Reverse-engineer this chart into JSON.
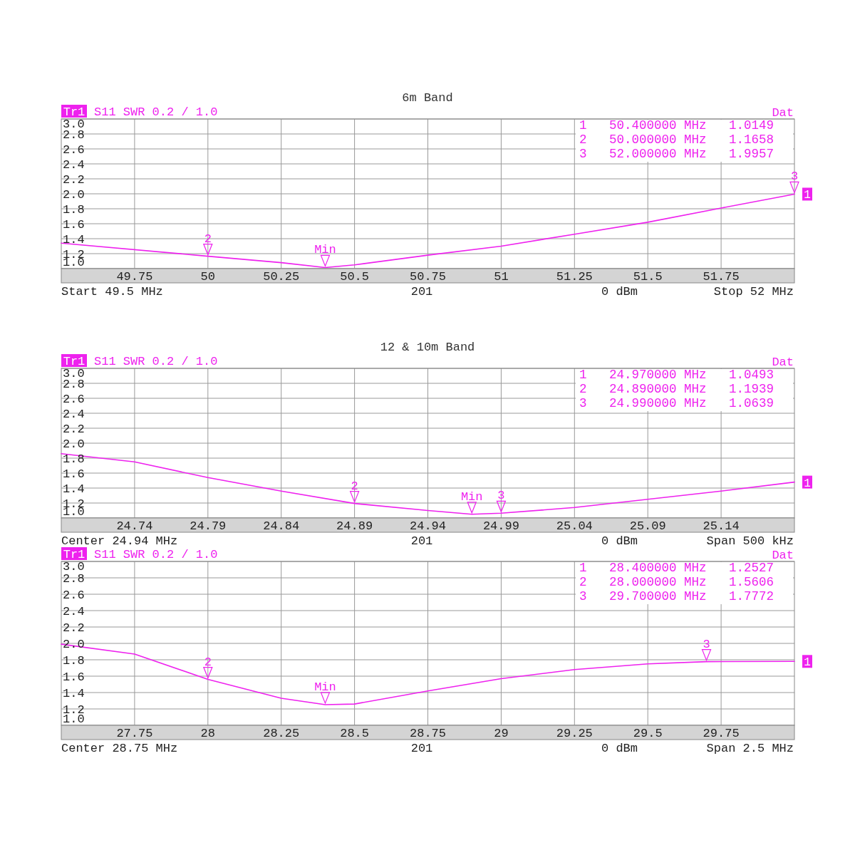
{
  "chart_data": [
    {
      "type": "line",
      "title": "6m Band",
      "color": "#ee22ee",
      "grid": true,
      "x": [
        49.5,
        50.0,
        50.25,
        50.4,
        50.5,
        50.75,
        51.0,
        51.25,
        51.5,
        51.75,
        52.0
      ],
      "values": [
        1.34,
        1.1658,
        1.08,
        1.0149,
        1.05,
        1.18,
        1.3,
        1.46,
        1.62,
        1.81,
        1.9957
      ],
      "xlim": [
        49.5,
        52
      ],
      "xticks": [
        49.75,
        50,
        50.25,
        50.5,
        50.75,
        51,
        51.25,
        51.5,
        51.75
      ],
      "ylim": [
        1,
        3
      ],
      "yticks": [
        {
          "value": 1,
          "label": "1.0"
        },
        {
          "value": 1.2,
          "label": "1.2"
        },
        {
          "value": 1.4,
          "label": "1.4"
        },
        {
          "value": 1.6,
          "label": "1.6"
        },
        {
          "value": 1.8,
          "label": "1.8"
        },
        {
          "value": 2,
          "label": "2.0"
        },
        {
          "value": 2.2,
          "label": "2.2"
        },
        {
          "value": 2.4,
          "label": "2.4"
        },
        {
          "value": 2.6,
          "label": "2.6"
        },
        {
          "value": 2.8,
          "label": "2.8"
        },
        {
          "value": 3,
          "label": "3.0"
        }
      ],
      "annotations": [
        "Tr1",
        "S11 SWR 0.2 / 1.0",
        "Dat",
        "1   50.400000 MHz   1.0149",
        "2   50.000000 MHz   1.1658",
        "3   52.000000 MHz   1.9957",
        "Start 49.5 MHz",
        "201",
        "0 dBm",
        "Stop 52 MHz",
        "1",
        {
          "text": "2",
          "x": 50,
          "y": 1.1658
        },
        {
          "text": "Min",
          "x": 50.4,
          "y": 1.0149
        },
        {
          "text": "3",
          "x": 52,
          "y": 1.9957
        }
      ]
    },
    {
      "type": "line",
      "title": "12 & 10m Band",
      "color": "#ee22ee",
      "grid": true,
      "x": [
        24.69,
        24.74,
        24.79,
        24.84,
        24.89,
        24.94,
        24.97,
        24.99,
        25.04,
        25.09,
        25.14,
        25.19
      ],
      "values": [
        1.86,
        1.75,
        1.54,
        1.36,
        1.1939,
        1.1,
        1.0493,
        1.0639,
        1.14,
        1.25,
        1.36,
        1.48
      ],
      "xlim": [
        24.69,
        25.19
      ],
      "xticks": [
        24.74,
        24.79,
        24.84,
        24.89,
        24.94,
        24.99,
        25.04,
        25.09,
        25.14
      ],
      "ylim": [
        1,
        3
      ],
      "yticks": [
        {
          "value": 1,
          "label": "1.0"
        },
        {
          "value": 1.2,
          "label": "1.2"
        },
        {
          "value": 1.4,
          "label": "1.4"
        },
        {
          "value": 1.6,
          "label": "1.6"
        },
        {
          "value": 1.8,
          "label": "1.8"
        },
        {
          "value": 2,
          "label": "2.0"
        },
        {
          "value": 2.2,
          "label": "2.2"
        },
        {
          "value": 2.4,
          "label": "2.4"
        },
        {
          "value": 2.6,
          "label": "2.6"
        },
        {
          "value": 2.8,
          "label": "2.8"
        },
        {
          "value": 3,
          "label": "3.0"
        }
      ],
      "annotations": [
        "Tr1",
        "S11 SWR 0.2 / 1.0",
        "Dat",
        "1   24.970000 MHz   1.0493",
        "2   24.890000 MHz   1.1939",
        "3   24.990000 MHz   1.0639",
        "Center 24.94 MHz",
        "201",
        "0 dBm",
        "Span 500 kHz",
        "1",
        {
          "text": "2",
          "x": 24.89,
          "y": 1.1939
        },
        {
          "text": "Min",
          "x": 24.97,
          "y": 1.0493
        },
        {
          "text": "3",
          "x": 24.99,
          "y": 1.0639
        }
      ]
    },
    {
      "type": "line",
      "color": "#ee22ee",
      "grid": true,
      "x": [
        27.5,
        27.75,
        28.0,
        28.25,
        28.4,
        28.5,
        28.75,
        29.0,
        29.25,
        29.5,
        29.7,
        30.0
      ],
      "values": [
        1.99,
        1.87,
        1.5606,
        1.33,
        1.2527,
        1.26,
        1.42,
        1.57,
        1.68,
        1.75,
        1.7772,
        1.78
      ],
      "xlim": [
        27.5,
        30
      ],
      "xticks": [
        27.75,
        28,
        28.25,
        28.5,
        28.75,
        29,
        29.25,
        29.5,
        29.75
      ],
      "ylim": [
        1,
        3
      ],
      "yticks": [
        {
          "value": 1,
          "label": "1.0"
        },
        {
          "value": 1.2,
          "label": "1.2"
        },
        {
          "value": 1.4,
          "label": "1.4"
        },
        {
          "value": 1.6,
          "label": "1.6"
        },
        {
          "value": 1.8,
          "label": "1.8"
        },
        {
          "value": 2,
          "label": "2.0"
        },
        {
          "value": 2.2,
          "label": "2.2"
        },
        {
          "value": 2.4,
          "label": "2.4"
        },
        {
          "value": 2.6,
          "label": "2.6"
        },
        {
          "value": 2.8,
          "label": "2.8"
        },
        {
          "value": 3,
          "label": "3.0"
        }
      ],
      "annotations": [
        "Tr1",
        "S11 SWR 0.2 / 1.0",
        "Dat",
        "1   28.400000 MHz   1.2527",
        "2   28.000000 MHz   1.5606",
        "3   29.700000 MHz   1.7772",
        "Center 28.75 MHz",
        "201",
        "0 dBm",
        "Span 2.5 MHz",
        "1",
        {
          "text": "2",
          "x": 28,
          "y": 1.5606
        },
        {
          "text": "Min",
          "x": 28.4,
          "y": 1.2527
        },
        {
          "text": "3",
          "x": 29.7,
          "y": 1.7772
        }
      ]
    }
  ]
}
